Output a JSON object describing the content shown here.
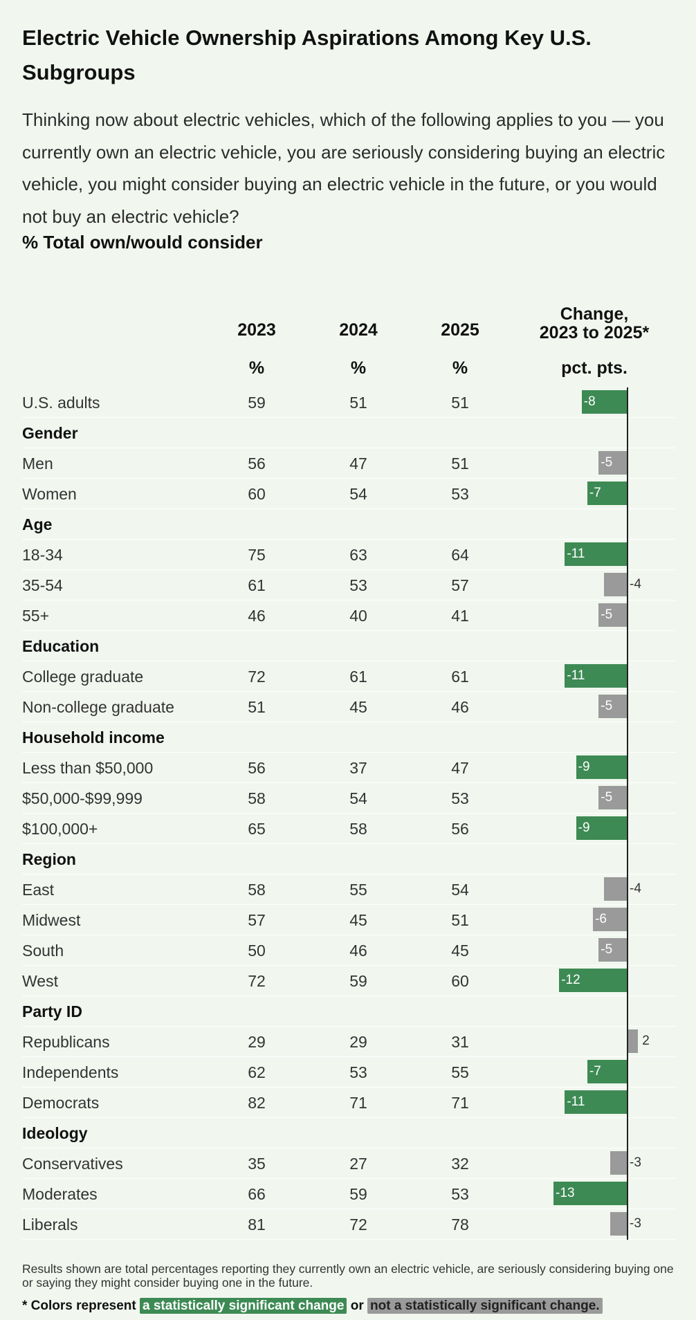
{
  "title": "Electric Vehicle Ownership Aspirations Among Key U.S. Subgroups",
  "question": "Thinking now about electric vehicles, which of the following applies to you — you currently own an electric vehicle, you are seriously considering buying an electric vehicle, you might consider buying an electric vehicle in the future, or you would not buy an electric vehicle?",
  "measure": "% Total own/would consider",
  "columns": {
    "y2023": "2023",
    "y2024": "2024",
    "y2025": "2025",
    "change_line1": "Change,",
    "change_line2": "2023 to 2025*",
    "unit_pct": "%",
    "unit_change": "pct. pts."
  },
  "colors": {
    "significant": "#3d8a54",
    "not_significant": "#9a9a9a"
  },
  "chart_data": {
    "type": "table",
    "rows": [
      {
        "label": "U.S. adults",
        "v2023": "59",
        "v2024": "51",
        "v2025": "51",
        "change": -8,
        "change_label": "-8",
        "significant": true
      },
      {
        "group": "Gender"
      },
      {
        "label": "Men",
        "v2023": "56",
        "v2024": "47",
        "v2025": "51",
        "change": -5,
        "change_label": "-5",
        "significant": false
      },
      {
        "label": "Women",
        "v2023": "60",
        "v2024": "54",
        "v2025": "53",
        "change": -7,
        "change_label": "-7",
        "significant": true
      },
      {
        "group": "Age"
      },
      {
        "label": "18-34",
        "v2023": "75",
        "v2024": "63",
        "v2025": "64",
        "change": -11,
        "change_label": "-11",
        "significant": true
      },
      {
        "label": "35-54",
        "v2023": "61",
        "v2024": "53",
        "v2025": "57",
        "change": -4,
        "change_label": "-4",
        "significant": false
      },
      {
        "label": "55+",
        "v2023": "46",
        "v2024": "40",
        "v2025": "41",
        "change": -5,
        "change_label": "-5",
        "significant": false
      },
      {
        "group": "Education"
      },
      {
        "label": "College graduate",
        "v2023": "72",
        "v2024": "61",
        "v2025": "61",
        "change": -11,
        "change_label": "-11",
        "significant": true
      },
      {
        "label": "Non-college graduate",
        "v2023": "51",
        "v2024": "45",
        "v2025": "46",
        "change": -5,
        "change_label": "-5",
        "significant": false
      },
      {
        "group": "Household income"
      },
      {
        "label": "Less than $50,000",
        "v2023": "56",
        "v2024": "37",
        "v2025": "47",
        "change": -9,
        "change_label": "-9",
        "significant": true
      },
      {
        "label": "$50,000-$99,999",
        "v2023": "58",
        "v2024": "54",
        "v2025": "53",
        "change": -5,
        "change_label": "-5",
        "significant": false
      },
      {
        "label": "$100,000+",
        "v2023": "65",
        "v2024": "58",
        "v2025": "56",
        "change": -9,
        "change_label": "-9",
        "significant": true
      },
      {
        "group": "Region"
      },
      {
        "label": "East",
        "v2023": "58",
        "v2024": "55",
        "v2025": "54",
        "change": -4,
        "change_label": "-4",
        "significant": false
      },
      {
        "label": "Midwest",
        "v2023": "57",
        "v2024": "45",
        "v2025": "51",
        "change": -6,
        "change_label": "-6",
        "significant": false
      },
      {
        "label": "South",
        "v2023": "50",
        "v2024": "46",
        "v2025": "45",
        "change": -5,
        "change_label": "-5",
        "significant": false
      },
      {
        "label": "West",
        "v2023": "72",
        "v2024": "59",
        "v2025": "60",
        "change": -12,
        "change_label": "-12",
        "significant": true
      },
      {
        "group": "Party ID"
      },
      {
        "label": "Republicans",
        "v2023": "29",
        "v2024": "29",
        "v2025": "31",
        "change": 2,
        "change_label": "2",
        "significant": false
      },
      {
        "label": "Independents",
        "v2023": "62",
        "v2024": "53",
        "v2025": "55",
        "change": -7,
        "change_label": "-7",
        "significant": true
      },
      {
        "label": "Democrats",
        "v2023": "82",
        "v2024": "71",
        "v2025": "71",
        "change": -11,
        "change_label": "-11",
        "significant": true
      },
      {
        "group": "Ideology"
      },
      {
        "label": "Conservatives",
        "v2023": "35",
        "v2024": "27",
        "v2025": "32",
        "change": -3,
        "change_label": "-3",
        "significant": false
      },
      {
        "label": "Moderates",
        "v2023": "66",
        "v2024": "59",
        "v2025": "53",
        "change": -13,
        "change_label": "-13",
        "significant": true
      },
      {
        "label": "Liberals",
        "v2023": "81",
        "v2024": "72",
        "v2025": "78",
        "change": -3,
        "change_label": "-3",
        "significant": false
      }
    ]
  },
  "note": "Results shown are total percentages reporting they currently own an electric vehicle, are seriously considering buying one or saying they might consider buying one in the future.",
  "legend": {
    "prefix": "* Colors represent",
    "significant": "a statistically significant change",
    "connector": "or",
    "not_significant": "not a statistically significant change."
  }
}
